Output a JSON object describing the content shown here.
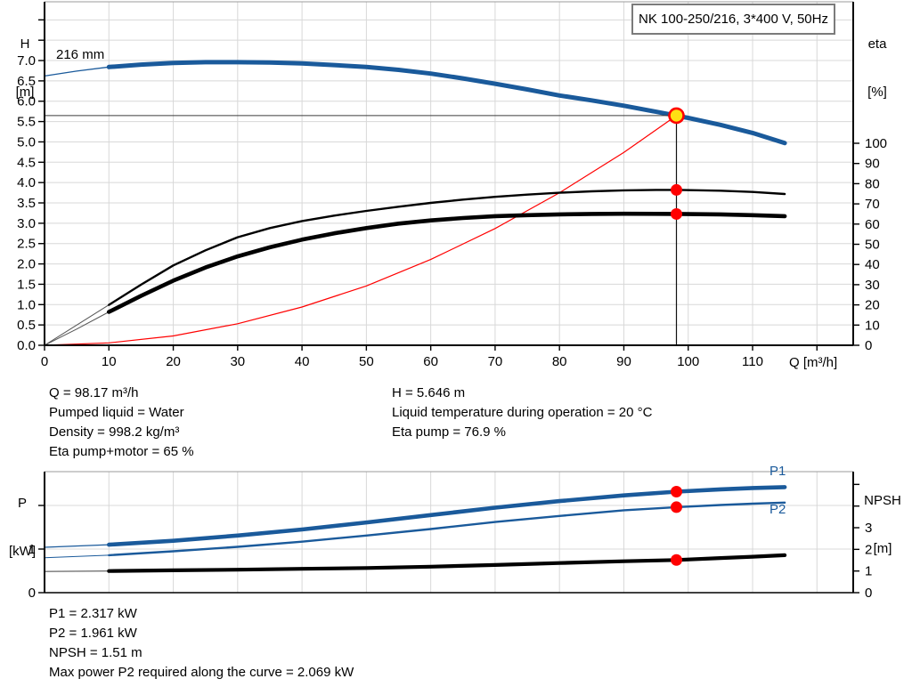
{
  "colors": {
    "curve_blue": "#1a5a9b",
    "marker_red": "#ff0000",
    "duty_yellow": "#ffe013",
    "grid": "#d8d8d8",
    "axis": "#000000",
    "border_gray": "#9b9b9b",
    "guide": "#3c3c3c",
    "lead_gray": "#555555"
  },
  "title_box": {
    "label": "NK 100-250/216, 3*400 V, 50Hz"
  },
  "info_top": {
    "left": [
      "Q = 98.17 m³/h",
      "Pumped liquid = Water",
      "Density = 998.2 kg/m³",
      "Eta pump+motor = 65 %"
    ],
    "right": [
      "H = 5.646 m",
      "Liquid temperature during operation = 20 °C",
      "Eta pump = 76.9 %"
    ]
  },
  "info_bottom": [
    "P1 = 2.317 kW",
    "P2 = 1.961 kW",
    "NPSH = 1.51 m",
    "Max power P2 required along the curve = 2.069 kW"
  ],
  "chart_data": [
    {
      "type": "line",
      "name": "hq-performance-chart",
      "title": "NK 100-250/216, 3*400 V, 50Hz",
      "xlabel": "Q [m³/h]",
      "ylabel_left": [
        "H",
        "[m]"
      ],
      "ylabel_right": [
        "eta",
        "[%]"
      ],
      "curve_label": "216 mm",
      "x_range": [
        0,
        125.6
      ],
      "x_ticks": [
        0,
        10,
        20,
        30,
        40,
        50,
        60,
        70,
        80,
        90,
        100,
        110,
        120
      ],
      "x_tick_labels": [
        "0",
        "10",
        "20",
        "30",
        "40",
        "50",
        "60",
        "70",
        "80",
        "90",
        "100",
        "110"
      ],
      "h_range": [
        0,
        8.45
      ],
      "h_ticks": [
        0,
        0.5,
        1,
        1.5,
        2,
        2.5,
        3,
        3.5,
        4,
        4.5,
        5,
        5.5,
        6,
        6.5,
        7,
        7.5,
        8
      ],
      "h_tick_labels": [
        "0.0",
        "0.5",
        "1.0",
        "1.5",
        "2.0",
        "2.5",
        "3.0",
        "3.5",
        "4.0",
        "4.5",
        "5.0",
        "5.5",
        "6.0",
        "6.5",
        "7.0"
      ],
      "eta_range": [
        0,
        100
      ],
      "eta_ticks": [
        0,
        10,
        20,
        30,
        40,
        50,
        60,
        70,
        80,
        90,
        100
      ],
      "eta_tick_labels": [
        "0",
        "10",
        "20",
        "30",
        "40",
        "50",
        "60",
        "70",
        "80",
        "90",
        "100"
      ],
      "grid": true,
      "series": [
        {
          "name": "head-curve-216mm",
          "axis": "H",
          "color": "#1a5a9b",
          "width": 5,
          "thin_until": 10,
          "thin_width": 1.3,
          "thin_color": "#1a5a9b",
          "points": [
            [
              0,
              6.62
            ],
            [
              5,
              6.74
            ],
            [
              10,
              6.84
            ],
            [
              15,
              6.9
            ],
            [
              20,
              6.94
            ],
            [
              25,
              6.96
            ],
            [
              30,
              6.96
            ],
            [
              35,
              6.95
            ],
            [
              40,
              6.93
            ],
            [
              45,
              6.89
            ],
            [
              50,
              6.84
            ],
            [
              55,
              6.77
            ],
            [
              60,
              6.68
            ],
            [
              65,
              6.56
            ],
            [
              70,
              6.43
            ],
            [
              75,
              6.29
            ],
            [
              80,
              6.14
            ],
            [
              85,
              6.02
            ],
            [
              90,
              5.89
            ],
            [
              95,
              5.74
            ],
            [
              98.17,
              5.646
            ],
            [
              100,
              5.59
            ],
            [
              105,
              5.42
            ],
            [
              110,
              5.22
            ],
            [
              115,
              4.97
            ]
          ]
        },
        {
          "name": "eta-pump-curve",
          "axis": "eta",
          "color": "#000000",
          "width": 2.4,
          "thin_until": 10,
          "thin_width": 1,
          "thin_color": "#555555",
          "points": [
            [
              0,
              0
            ],
            [
              5,
              10
            ],
            [
              10,
              20
            ],
            [
              15,
              30
            ],
            [
              20,
              39.5
            ],
            [
              25,
              47
            ],
            [
              30,
              53.5
            ],
            [
              35,
              58
            ],
            [
              40,
              61.5
            ],
            [
              45,
              64.2
            ],
            [
              50,
              66.5
            ],
            [
              55,
              68.6
            ],
            [
              60,
              70.5
            ],
            [
              65,
              72.1
            ],
            [
              70,
              73.5
            ],
            [
              75,
              74.6
            ],
            [
              80,
              75.5
            ],
            [
              85,
              76.2
            ],
            [
              90,
              76.7
            ],
            [
              95,
              76.9
            ],
            [
              98.17,
              76.9
            ],
            [
              105,
              76.5
            ],
            [
              110,
              75.9
            ],
            [
              115,
              74.9
            ]
          ]
        },
        {
          "name": "eta-pump-motor-curve",
          "axis": "eta",
          "color": "#000000",
          "width": 4.6,
          "thin_until": 10,
          "thin_width": 1,
          "thin_color": "#555555",
          "points": [
            [
              0,
              0
            ],
            [
              5,
              8
            ],
            [
              10,
              16.5
            ],
            [
              15,
              24.5
            ],
            [
              20,
              32
            ],
            [
              25,
              38.5
            ],
            [
              30,
              44
            ],
            [
              35,
              48.5
            ],
            [
              40,
              52.3
            ],
            [
              45,
              55.4
            ],
            [
              50,
              58
            ],
            [
              55,
              60.2
            ],
            [
              60,
              61.8
            ],
            [
              65,
              63
            ],
            [
              70,
              63.9
            ],
            [
              75,
              64.4
            ],
            [
              80,
              64.8
            ],
            [
              85,
              65
            ],
            [
              90,
              65.1
            ],
            [
              95,
              65.05
            ],
            [
              98.17,
              65
            ],
            [
              105,
              64.8
            ],
            [
              110,
              64.4
            ],
            [
              115,
              63.9
            ]
          ]
        },
        {
          "name": "system-curve",
          "axis": "H",
          "color": "#ff0000",
          "width": 1.2,
          "points": [
            [
              0,
              0
            ],
            [
              10,
              0.06
            ],
            [
              20,
              0.23
            ],
            [
              30,
              0.53
            ],
            [
              40,
              0.94
            ],
            [
              50,
              1.46
            ],
            [
              60,
              2.11
            ],
            [
              70,
              2.87
            ],
            [
              80,
              3.75
            ],
            [
              90,
              4.74
            ],
            [
              98.17,
              5.646
            ]
          ]
        }
      ],
      "duty_point": {
        "q": 98.17,
        "h": 5.646
      },
      "eta_markers": [
        {
          "q": 98.17,
          "eta": 76.9
        },
        {
          "q": 98.17,
          "eta": 65
        }
      ]
    },
    {
      "type": "line",
      "name": "power-npsh-chart",
      "ylabel_left": [
        "P",
        "[kW]"
      ],
      "ylabel_right": [
        "NPSH",
        "[m]"
      ],
      "x_range": [
        0,
        125.6
      ],
      "x_ticks": [
        0,
        10,
        20,
        30,
        40,
        50,
        60,
        70,
        80,
        90,
        100,
        110,
        120
      ],
      "p_range": [
        0,
        2.78
      ],
      "p_ticks": [
        0,
        1,
        2
      ],
      "p_tick_labels": [
        "0",
        "1"
      ],
      "npsh_range": [
        0,
        5.6
      ],
      "npsh_ticks": [
        0,
        1,
        2,
        3,
        4,
        5
      ],
      "npsh_tick_labels": [
        "0",
        "1",
        "2",
        "3"
      ],
      "grid": true,
      "series": [
        {
          "name": "p1-curve",
          "label": "P1",
          "axis": "P",
          "color": "#1a5a9b",
          "width": 4.6,
          "thin_until": 10,
          "thin_width": 1.2,
          "thin_color": "#1a5a9b",
          "points": [
            [
              0,
              1.04
            ],
            [
              10,
              1.1
            ],
            [
              20,
              1.19
            ],
            [
              30,
              1.31
            ],
            [
              40,
              1.45
            ],
            [
              50,
              1.61
            ],
            [
              60,
              1.78
            ],
            [
              70,
              1.95
            ],
            [
              80,
              2.1
            ],
            [
              90,
              2.23
            ],
            [
              98.17,
              2.317
            ],
            [
              105,
              2.37
            ],
            [
              110,
              2.4
            ],
            [
              115,
              2.42
            ]
          ]
        },
        {
          "name": "p2-curve",
          "label": "P2",
          "axis": "P",
          "color": "#1a5a9b",
          "width": 2.4,
          "thin_until": 10,
          "thin_width": 1,
          "thin_color": "#1a5a9b",
          "points": [
            [
              0,
              0.8
            ],
            [
              10,
              0.86
            ],
            [
              20,
              0.95
            ],
            [
              30,
              1.05
            ],
            [
              40,
              1.17
            ],
            [
              50,
              1.31
            ],
            [
              60,
              1.46
            ],
            [
              70,
              1.62
            ],
            [
              80,
              1.76
            ],
            [
              90,
              1.89
            ],
            [
              98.17,
              1.961
            ],
            [
              105,
              2.01
            ],
            [
              110,
              2.04
            ],
            [
              115,
              2.065
            ]
          ]
        },
        {
          "name": "npsh-curve",
          "axis": "NPSH",
          "color": "#000000",
          "width": 4.2,
          "thin_until": 10,
          "thin_width": 1.2,
          "thin_color": "#555555",
          "points": [
            [
              0,
              0.98
            ],
            [
              10,
              1.0
            ],
            [
              20,
              1.03
            ],
            [
              30,
              1.06
            ],
            [
              40,
              1.1
            ],
            [
              50,
              1.14
            ],
            [
              60,
              1.2
            ],
            [
              70,
              1.28
            ],
            [
              80,
              1.37
            ],
            [
              90,
              1.45
            ],
            [
              98.17,
              1.51
            ],
            [
              105,
              1.6
            ],
            [
              110,
              1.66
            ],
            [
              115,
              1.73
            ]
          ]
        }
      ],
      "markers": [
        {
          "q": 98.17,
          "axis": "P",
          "value": 2.317
        },
        {
          "q": 98.17,
          "axis": "P",
          "value": 1.961
        },
        {
          "q": 98.17,
          "axis": "NPSH",
          "value": 1.51
        }
      ]
    }
  ]
}
